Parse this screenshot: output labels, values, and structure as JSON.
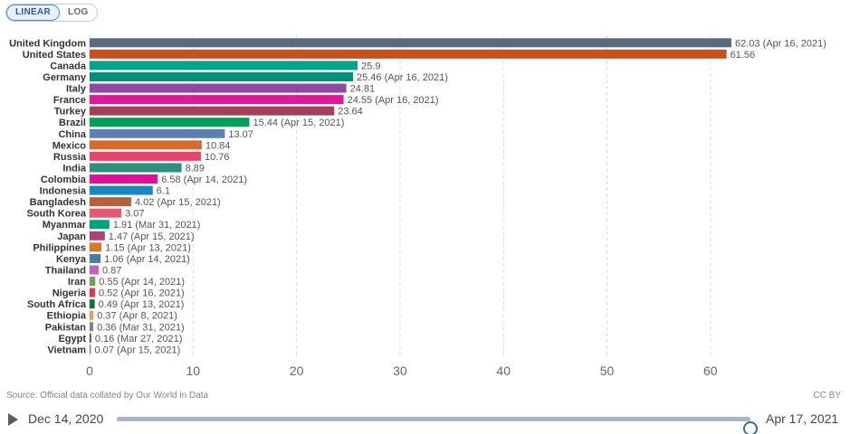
{
  "controls": {
    "linear_label": "LINEAR",
    "log_label": "LOG"
  },
  "chart_data": {
    "type": "bar",
    "orientation": "horizontal",
    "xlim": [
      0,
      62.03
    ],
    "xticks": [
      0,
      10,
      20,
      30,
      40,
      50,
      60
    ],
    "grid": true,
    "bars": [
      {
        "label": "United Kingdom",
        "value": 62.03,
        "value_label": "62.03 (Apr 16, 2021)",
        "color": "#5b6a7f"
      },
      {
        "label": "United States",
        "value": 61.56,
        "value_label": "61.56",
        "color": "#c8501d"
      },
      {
        "label": "Canada",
        "value": 25.9,
        "value_label": "25.9",
        "color": "#00a48e"
      },
      {
        "label": "Germany",
        "value": 25.46,
        "value_label": "25.46 (Apr 16, 2021)",
        "color": "#00917d"
      },
      {
        "label": "Italy",
        "value": 24.81,
        "value_label": "24.81",
        "color": "#8d4aa0"
      },
      {
        "label": "France",
        "value": 24.55,
        "value_label": "24.55 (Apr 16, 2021)",
        "color": "#e0179b"
      },
      {
        "label": "Turkey",
        "value": 23.64,
        "value_label": "23.64",
        "color": "#a34159"
      },
      {
        "label": "Brazil",
        "value": 15.44,
        "value_label": "15.44 (Apr 15, 2021)",
        "color": "#009e5c"
      },
      {
        "label": "China",
        "value": 13.07,
        "value_label": "13.07",
        "color": "#5e7fb0"
      },
      {
        "label": "Mexico",
        "value": 10.84,
        "value_label": "10.84",
        "color": "#d86b28"
      },
      {
        "label": "Russia",
        "value": 10.76,
        "value_label": "10.76",
        "color": "#e8456c"
      },
      {
        "label": "India",
        "value": 8.89,
        "value_label": "8.89",
        "color": "#2f8f7e"
      },
      {
        "label": "Colombia",
        "value": 6.58,
        "value_label": "6.58 (Apr 14, 2021)",
        "color": "#e0109c"
      },
      {
        "label": "Indonesia",
        "value": 6.1,
        "value_label": "6.1",
        "color": "#1a87c0"
      },
      {
        "label": "Bangladesh",
        "value": 4.02,
        "value_label": "4.02 (Apr 15, 2021)",
        "color": "#b5613f"
      },
      {
        "label": "South Korea",
        "value": 3.07,
        "value_label": "3.07",
        "color": "#e05a74"
      },
      {
        "label": "Myanmar",
        "value": 1.91,
        "value_label": "1.91 (Mar 31, 2021)",
        "color": "#00a37a"
      },
      {
        "label": "Japan",
        "value": 1.47,
        "value_label": "1.47 (Apr 15, 2021)",
        "color": "#a7457a"
      },
      {
        "label": "Philippines",
        "value": 1.15,
        "value_label": "1.15 (Apr 13, 2021)",
        "color": "#d97a2a"
      },
      {
        "label": "Kenya",
        "value": 1.06,
        "value_label": "1.06 (Apr 14, 2021)",
        "color": "#4a7aa6"
      },
      {
        "label": "Thailand",
        "value": 0.87,
        "value_label": "0.87",
        "color": "#c462b8"
      },
      {
        "label": "Iran",
        "value": 0.55,
        "value_label": "0.55 (Apr 14, 2021)",
        "color": "#6ba35a"
      },
      {
        "label": "Nigeria",
        "value": 0.52,
        "value_label": "0.52 (Apr 16, 2021)",
        "color": "#e8334f"
      },
      {
        "label": "South Africa",
        "value": 0.49,
        "value_label": "0.49 (Apr 13, 2021)",
        "color": "#12703a"
      },
      {
        "label": "Ethiopia",
        "value": 0.37,
        "value_label": "0.37 (Apr 8, 2021)",
        "color": "#d9a06a"
      },
      {
        "label": "Pakistan",
        "value": 0.36,
        "value_label": "0.36 (Mar 31, 2021)",
        "color": "#7a8a9c"
      },
      {
        "label": "Egypt",
        "value": 0.16,
        "value_label": "0.16 (Mar 27, 2021)",
        "color": "#3a5a8a"
      },
      {
        "label": "Vietnam",
        "value": 0.07,
        "value_label": "0.07 (Apr 15, 2021)",
        "color": "#8a8a8a"
      }
    ]
  },
  "footer": {
    "source": "Source: Official data collated by Our World in Data",
    "license": "CC BY"
  },
  "timeline": {
    "start_label": "Dec 14, 2020",
    "end_label": "Apr 17, 2021",
    "position_fraction": 1.0,
    "handle_color": "#3e6b9e"
  }
}
